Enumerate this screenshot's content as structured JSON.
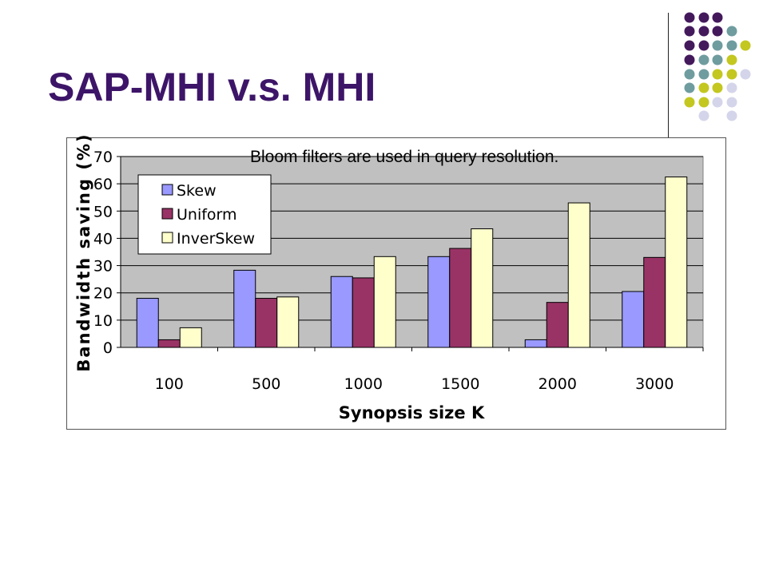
{
  "slide": {
    "title": "SAP-MHI v.s. MHI"
  },
  "decoration": {
    "dot_colors": {
      "purple": "#44195c",
      "teal": "#6f9c9f",
      "olive": "#c3c71f",
      "lavender": "#d4d5ea"
    }
  },
  "chart_data": {
    "type": "bar",
    "title": "",
    "subtitle": "Bloom filters are used in query resolution.",
    "xlabel": "Synopsis size K",
    "ylabel": "Bandwidth saving (%)",
    "categories": [
      "100",
      "500",
      "1000",
      "1500",
      "2000",
      "3000"
    ],
    "ylim": [
      0,
      70
    ],
    "yticks": [
      0,
      10,
      20,
      30,
      40,
      50,
      60,
      70
    ],
    "grid": true,
    "legend_position": "top-left",
    "series": [
      {
        "name": "Skew",
        "color": "#9999ff",
        "values": [
          18,
          28.3,
          26,
          33.3,
          2.8,
          20.5
        ]
      },
      {
        "name": "Uniform",
        "color": "#993366",
        "values": [
          2.8,
          18,
          25.5,
          36.3,
          16.5,
          33
        ]
      },
      {
        "name": "InverSkew",
        "color": "#ffffcc",
        "values": [
          7.2,
          18.5,
          33.3,
          43.5,
          53,
          62.5
        ]
      }
    ],
    "plot_background": "#c0c0c0"
  }
}
